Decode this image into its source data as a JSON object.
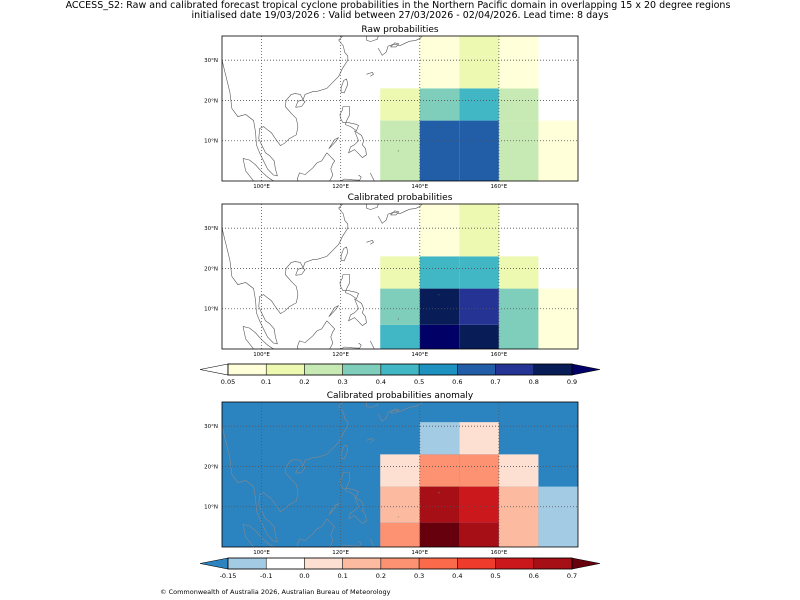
{
  "header": {
    "title_line1": "ACCESS_S2: Raw and calibrated forecast tropical cyclone probabilities in the Northern Pacific domain in overlapping 15 x 20 degree regions",
    "title_line2": "initialised date 19/03/2026 :  Valid between 27/03/2026 - 02/04/2026. Lead time: 8 days"
  },
  "footer": {
    "copyright": "© Commonwealth of Australia 2026, Australian Bureau of Meteorology"
  },
  "colors": {
    "prob_scale": [
      "#ffffd9",
      "#edf8b1",
      "#c7e9b4",
      "#7fcdbb",
      "#41b6c4",
      "#1d91c0",
      "#225ea8",
      "#253494",
      "#081d58",
      "#000066"
    ],
    "anom_scale": [
      "#2b83c0",
      "#a3cbe3",
      "#ffffff",
      "#fee0d2",
      "#fcbba1",
      "#fc9272",
      "#fb6a4a",
      "#ef3b2c",
      "#cb181d",
      "#a50f15",
      "#67000d"
    ],
    "land_outline": "#555555",
    "anom_land_outline": "#888888",
    "gridline": "#555555"
  },
  "chart_data": [
    {
      "type": "heatmap",
      "id": "raw",
      "title": "Raw probabilities",
      "xlim": [
        90,
        180
      ],
      "ylim": [
        0,
        36
      ],
      "xticks": [
        100,
        120,
        140,
        160
      ],
      "xtick_labels": [
        "100°E",
        "120°E",
        "140°E",
        "160°E"
      ],
      "yticks": [
        10,
        20,
        30
      ],
      "ytick_labels": [
        "10°N",
        "20°N",
        "30°N"
      ],
      "grid": true,
      "scale": "prob",
      "cells": [
        {
          "lon": [
            130,
            140
          ],
          "lat": [
            0,
            15
          ],
          "value": 0.25
        },
        {
          "lon": [
            130,
            140
          ],
          "lat": [
            15,
            23
          ],
          "value": 0.15
        },
        {
          "lon": [
            140,
            150
          ],
          "lat": [
            0,
            15
          ],
          "value": 0.65
        },
        {
          "lon": [
            140,
            150
          ],
          "lat": [
            15,
            23
          ],
          "value": 0.35
        },
        {
          "lon": [
            140,
            150
          ],
          "lat": [
            23,
            31
          ],
          "value": 0.08
        },
        {
          "lon": [
            140,
            150
          ],
          "lat": [
            31,
            36
          ],
          "value": 0.06
        },
        {
          "lon": [
            150,
            160
          ],
          "lat": [
            0,
            15
          ],
          "value": 0.65
        },
        {
          "lon": [
            150,
            160
          ],
          "lat": [
            15,
            23
          ],
          "value": 0.45
        },
        {
          "lon": [
            150,
            160
          ],
          "lat": [
            23,
            31
          ],
          "value": 0.15
        },
        {
          "lon": [
            150,
            160
          ],
          "lat": [
            31,
            36
          ],
          "value": 0.15
        },
        {
          "lon": [
            160,
            170
          ],
          "lat": [
            0,
            15
          ],
          "value": 0.25
        },
        {
          "lon": [
            160,
            170
          ],
          "lat": [
            15,
            23
          ],
          "value": 0.25
        },
        {
          "lon": [
            160,
            170
          ],
          "lat": [
            23,
            31
          ],
          "value": 0.08
        },
        {
          "lon": [
            160,
            170
          ],
          "lat": [
            31,
            36
          ],
          "value": 0.06
        },
        {
          "lon": [
            170,
            180
          ],
          "lat": [
            0,
            15
          ],
          "value": 0.08
        }
      ]
    },
    {
      "type": "heatmap",
      "id": "cal",
      "title": "Calibrated probabilities",
      "xlim": [
        90,
        180
      ],
      "ylim": [
        0,
        36
      ],
      "xticks": [
        100,
        120,
        140,
        160
      ],
      "xtick_labels": [
        "100°E",
        "120°E",
        "140°E",
        "160°E"
      ],
      "yticks": [
        10,
        20,
        30
      ],
      "ytick_labels": [
        "10°N",
        "20°N",
        "30°N"
      ],
      "grid": true,
      "scale": "prob",
      "cells": [
        {
          "lon": [
            130,
            140
          ],
          "lat": [
            0,
            6
          ],
          "value": 0.45
        },
        {
          "lon": [
            130,
            140
          ],
          "lat": [
            6,
            15
          ],
          "value": 0.35
        },
        {
          "lon": [
            130,
            140
          ],
          "lat": [
            15,
            23
          ],
          "value": 0.15
        },
        {
          "lon": [
            140,
            150
          ],
          "lat": [
            0,
            6
          ],
          "value": 0.95
        },
        {
          "lon": [
            140,
            150
          ],
          "lat": [
            6,
            15
          ],
          "value": 0.85
        },
        {
          "lon": [
            140,
            150
          ],
          "lat": [
            15,
            23
          ],
          "value": 0.45
        },
        {
          "lon": [
            140,
            150
          ],
          "lat": [
            23,
            31
          ],
          "value": 0.08
        },
        {
          "lon": [
            140,
            150
          ],
          "lat": [
            31,
            36
          ],
          "value": 0.06
        },
        {
          "lon": [
            150,
            160
          ],
          "lat": [
            0,
            6
          ],
          "value": 0.85
        },
        {
          "lon": [
            150,
            160
          ],
          "lat": [
            6,
            15
          ],
          "value": 0.75
        },
        {
          "lon": [
            150,
            160
          ],
          "lat": [
            15,
            23
          ],
          "value": 0.45
        },
        {
          "lon": [
            150,
            160
          ],
          "lat": [
            23,
            31
          ],
          "value": 0.15
        },
        {
          "lon": [
            150,
            160
          ],
          "lat": [
            31,
            36
          ],
          "value": 0.15
        },
        {
          "lon": [
            160,
            170
          ],
          "lat": [
            0,
            15
          ],
          "value": 0.35
        },
        {
          "lon": [
            160,
            170
          ],
          "lat": [
            15,
            23
          ],
          "value": 0.15
        },
        {
          "lon": [
            170,
            180
          ],
          "lat": [
            0,
            15
          ],
          "value": 0.08
        }
      ]
    },
    {
      "type": "heatmap",
      "id": "anom",
      "title": "Calibrated probabilities anomaly",
      "xlim": [
        90,
        180
      ],
      "ylim": [
        0,
        36
      ],
      "xticks": [
        100,
        120,
        140,
        160
      ],
      "xtick_labels": [
        "100°E",
        "120°E",
        "140°E",
        "160°E"
      ],
      "yticks": [
        10,
        20,
        30
      ],
      "ytick_labels": [
        "10°N",
        "20°N",
        "30°N"
      ],
      "grid": true,
      "scale": "anom",
      "background_value": -0.2,
      "cells": [
        {
          "lon": [
            130,
            140
          ],
          "lat": [
            0,
            6
          ],
          "value": 0.25
        },
        {
          "lon": [
            130,
            140
          ],
          "lat": [
            6,
            15
          ],
          "value": 0.15
        },
        {
          "lon": [
            130,
            140
          ],
          "lat": [
            15,
            23
          ],
          "value": 0.0
        },
        {
          "lon": [
            140,
            150
          ],
          "lat": [
            0,
            6
          ],
          "value": 0.75
        },
        {
          "lon": [
            140,
            150
          ],
          "lat": [
            6,
            15
          ],
          "value": 0.65
        },
        {
          "lon": [
            140,
            150
          ],
          "lat": [
            15,
            23
          ],
          "value": 0.25
        },
        {
          "lon": [
            140,
            150
          ],
          "lat": [
            23,
            31
          ],
          "value": -0.12
        },
        {
          "lon": [
            150,
            160
          ],
          "lat": [
            0,
            6
          ],
          "value": 0.65
        },
        {
          "lon": [
            150,
            160
          ],
          "lat": [
            6,
            15
          ],
          "value": 0.55
        },
        {
          "lon": [
            150,
            160
          ],
          "lat": [
            15,
            23
          ],
          "value": 0.25
        },
        {
          "lon": [
            150,
            160
          ],
          "lat": [
            23,
            31
          ],
          "value": 0.0
        },
        {
          "lon": [
            160,
            170
          ],
          "lat": [
            0,
            15
          ],
          "value": 0.15
        },
        {
          "lon": [
            160,
            170
          ],
          "lat": [
            15,
            23
          ],
          "value": 0.0
        },
        {
          "lon": [
            170,
            180
          ],
          "lat": [
            0,
            15
          ],
          "value": -0.12
        }
      ]
    }
  ],
  "colorbars": {
    "prob": {
      "boundaries": [
        0.05,
        0.1,
        0.2,
        0.3,
        0.4,
        0.5,
        0.6,
        0.7,
        0.8,
        0.9
      ],
      "labels": [
        "0.05",
        "0.1",
        "0.2",
        "0.3",
        "0.4",
        "0.5",
        "0.6",
        "0.7",
        "0.8",
        "0.9"
      ],
      "extend_min_value": 0.0,
      "extend_max_value": 0.95
    },
    "anom": {
      "boundaries": [
        -0.15,
        -0.1,
        0.0,
        0.1,
        0.2,
        0.3,
        0.4,
        0.5,
        0.6,
        0.7
      ],
      "labels": [
        "-0.15",
        "-0.1",
        "0.0",
        "0.1",
        "0.2",
        "0.3",
        "0.4",
        "0.5",
        "0.6",
        "0.7"
      ],
      "extend_min_value": -0.2,
      "extend_max_value": 0.75
    }
  }
}
